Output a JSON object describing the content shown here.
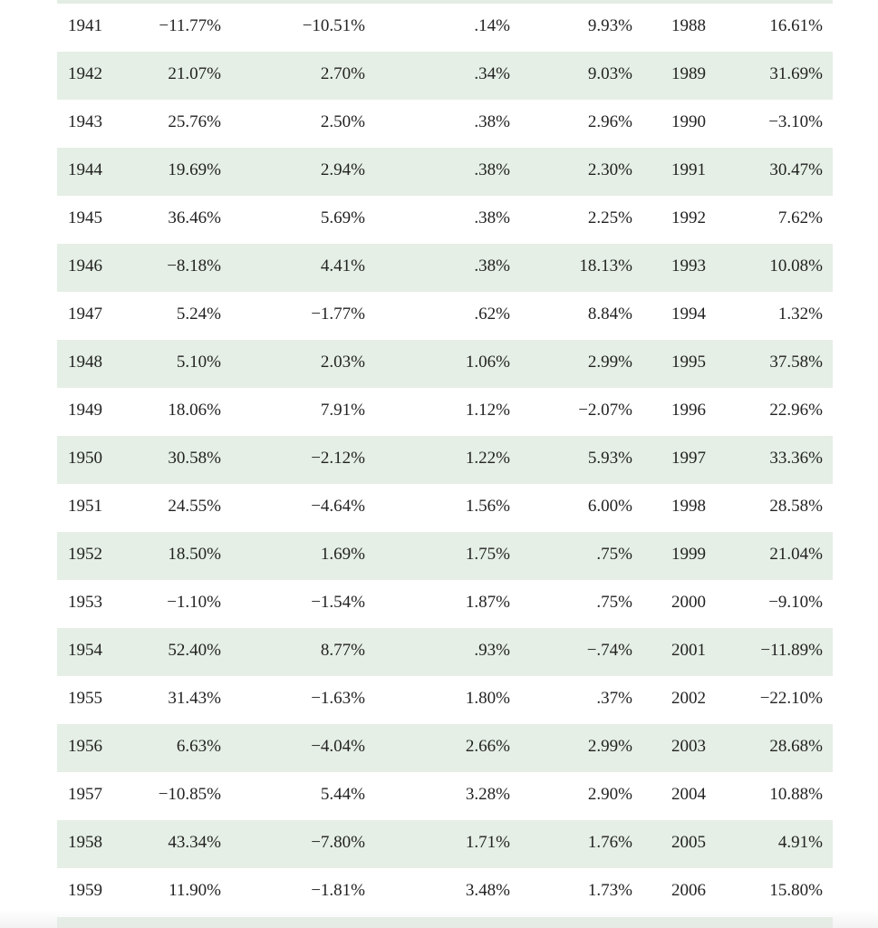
{
  "table": {
    "rows": [
      [
        "1941",
        "−11.77%",
        "−10.51%",
        ".14%",
        "9.93%",
        "1988",
        "16.61%"
      ],
      [
        "1942",
        "21.07%",
        "2.70%",
        ".34%",
        "9.03%",
        "1989",
        "31.69%"
      ],
      [
        "1943",
        "25.76%",
        "2.50%",
        ".38%",
        "2.96%",
        "1990",
        "−3.10%"
      ],
      [
        "1944",
        "19.69%",
        "2.94%",
        ".38%",
        "2.30%",
        "1991",
        "30.47%"
      ],
      [
        "1945",
        "36.46%",
        "5.69%",
        ".38%",
        "2.25%",
        "1992",
        "7.62%"
      ],
      [
        "1946",
        "−8.18%",
        "4.41%",
        ".38%",
        "18.13%",
        "1993",
        "10.08%"
      ],
      [
        "1947",
        "5.24%",
        "−1.77%",
        ".62%",
        "8.84%",
        "1994",
        "1.32%"
      ],
      [
        "1948",
        "5.10%",
        "2.03%",
        "1.06%",
        "2.99%",
        "1995",
        "37.58%"
      ],
      [
        "1949",
        "18.06%",
        "7.91%",
        "1.12%",
        "−2.07%",
        "1996",
        "22.96%"
      ],
      [
        "1950",
        "30.58%",
        "−2.12%",
        "1.22%",
        "5.93%",
        "1997",
        "33.36%"
      ],
      [
        "1951",
        "24.55%",
        "−4.64%",
        "1.56%",
        "6.00%",
        "1998",
        "28.58%"
      ],
      [
        "1952",
        "18.50%",
        "1.69%",
        "1.75%",
        ".75%",
        "1999",
        "21.04%"
      ],
      [
        "1953",
        "−1.10%",
        "−1.54%",
        "1.87%",
        ".75%",
        "2000",
        "−9.10%"
      ],
      [
        "1954",
        "52.40%",
        "8.77%",
        ".93%",
        "−.74%",
        "2001",
        "−11.89%"
      ],
      [
        "1955",
        "31.43%",
        "−1.63%",
        "1.80%",
        ".37%",
        "2002",
        "−22.10%"
      ],
      [
        "1956",
        "6.63%",
        "−4.04%",
        "2.66%",
        "2.99%",
        "2003",
        "28.68%"
      ],
      [
        "1957",
        "−10.85%",
        "5.44%",
        "3.28%",
        "2.90%",
        "2004",
        "10.88%"
      ],
      [
        "1958",
        "43.34%",
        "−7.80%",
        "1.71%",
        "1.76%",
        "2005",
        "4.91%"
      ],
      [
        "1959",
        "11.90%",
        "−1.81%",
        "3.48%",
        "1.73%",
        "2006",
        "15.80%"
      ]
    ]
  }
}
